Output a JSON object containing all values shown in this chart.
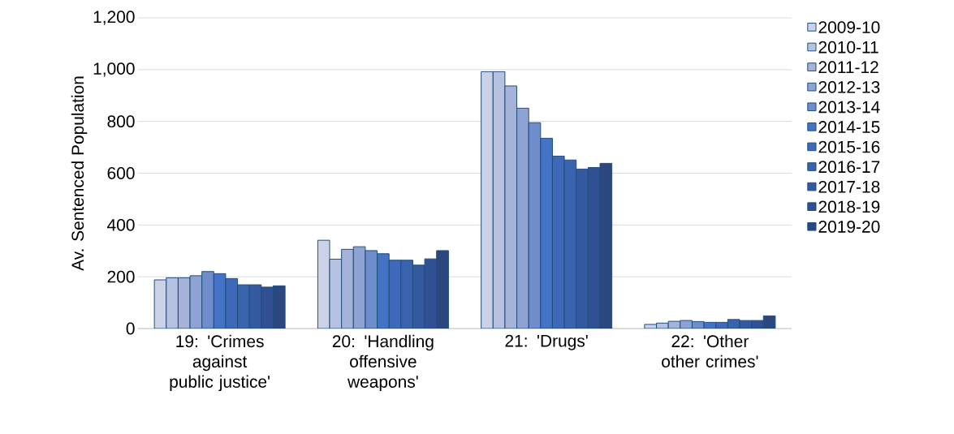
{
  "chart_data": {
    "type": "bar",
    "ylabel": "Av. Sentenced Population",
    "categories": [
      "19: 'Crimes against public justice'",
      "20: 'Handling offensive weapons'",
      "21: 'Drugs'",
      "22: 'Other other crimes'"
    ],
    "ylim": [
      0,
      1200
    ],
    "yticks": [
      0,
      200,
      400,
      600,
      800,
      {
        "value": 1000,
        "label": "1,000"
      },
      {
        "value": 1200,
        "label": "1,200"
      }
    ],
    "grid": "y",
    "legend": "right",
    "series": [
      {
        "name": "2009-10",
        "color": "#cbd2e8",
        "values": [
          188,
          341,
          992,
          16
        ]
      },
      {
        "name": "2010-11",
        "color": "#b7c1e1",
        "values": [
          196,
          268,
          992,
          21
        ]
      },
      {
        "name": "2011-12",
        "color": "#a6b3d9",
        "values": [
          196,
          306,
          937,
          28
        ]
      },
      {
        "name": "2012-13",
        "color": "#8fa2d4",
        "values": [
          204,
          316,
          851,
          31
        ]
      },
      {
        "name": "2013-14",
        "color": "#6f8ccb",
        "values": [
          220,
          301,
          795,
          27
        ]
      },
      {
        "name": "2014-15",
        "color": "#4472c4",
        "values": [
          212,
          289,
          735,
          24
        ]
      },
      {
        "name": "2015-16",
        "color": "#3f69b8",
        "values": [
          193,
          264,
          666,
          24
        ]
      },
      {
        "name": "2016-17",
        "color": "#3a63ae",
        "values": [
          169,
          264,
          651,
          35
        ]
      },
      {
        "name": "2017-18",
        "color": "#3559a0",
        "values": [
          169,
          245,
          616,
          31
        ]
      },
      {
        "name": "2018-19",
        "color": "#314f93",
        "values": [
          160,
          269,
          622,
          31
        ]
      },
      {
        "name": "2019-20",
        "color": "#2c4780",
        "values": [
          165,
          301,
          638,
          49
        ]
      }
    ]
  }
}
